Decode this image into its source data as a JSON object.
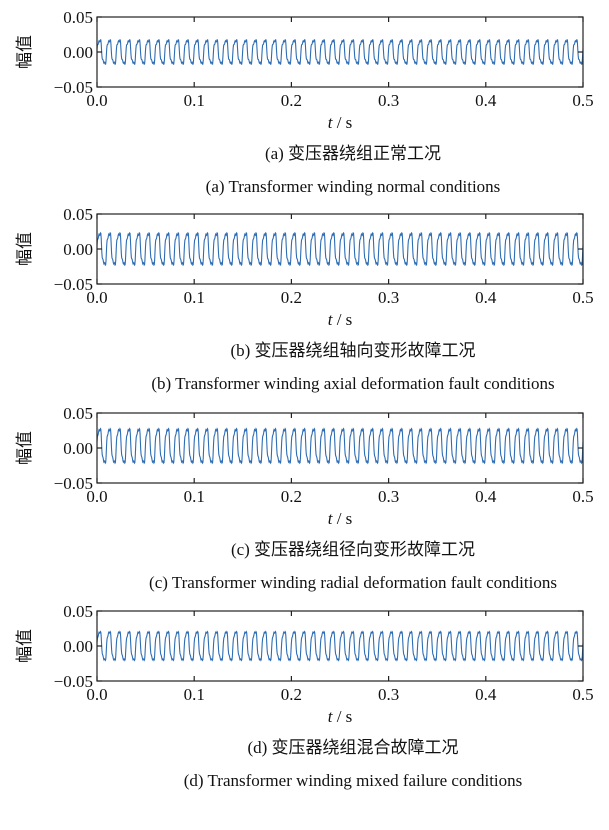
{
  "chart_data": [
    {
      "type": "line",
      "panel": "a",
      "ylabel": "幅值",
      "xlabel": {
        "var": "t",
        "unit": " / s"
      },
      "xlim": [
        0.0,
        0.5
      ],
      "ylim": [
        -0.05,
        0.05
      ],
      "xticks": [
        "0.0",
        "0.1",
        "0.2",
        "0.3",
        "0.4",
        "0.5"
      ],
      "yticks": [
        "0.05",
        "0.00",
        "−0.05"
      ],
      "color": "#2e6db4",
      "signal": {
        "frequency_hz": 100,
        "amplitude": 0.018,
        "offset": 0.0,
        "ripple_amplitude": 0.004
      },
      "caption_cn": "(a)  变压器绕组正常工况",
      "caption_en": "(a)  Transformer winding normal conditions"
    },
    {
      "type": "line",
      "panel": "b",
      "ylabel": "幅值",
      "xlabel": {
        "var": "t",
        "unit": " / s"
      },
      "xlim": [
        0.0,
        0.5
      ],
      "ylim": [
        -0.05,
        0.05
      ],
      "xticks": [
        "0.0",
        "0.1",
        "0.2",
        "0.3",
        "0.4",
        "0.5"
      ],
      "yticks": [
        "0.05",
        "0.00",
        "−0.05"
      ],
      "color": "#2e6db4",
      "signal": {
        "frequency_hz": 100,
        "amplitude": 0.024,
        "offset": 0.0,
        "ripple_amplitude": 0.005
      },
      "caption_cn": "(b)  变压器绕组轴向变形故障工况",
      "caption_en": "(b) Transformer winding axial deformation fault conditions"
    },
    {
      "type": "line",
      "panel": "c",
      "ylabel": "幅值",
      "xlabel": {
        "var": "t",
        "unit": " / s"
      },
      "xlim": [
        0.0,
        0.5
      ],
      "ylim": [
        -0.05,
        0.05
      ],
      "xticks": [
        "0.0",
        "0.1",
        "0.2",
        "0.3",
        "0.4",
        "0.5"
      ],
      "yticks": [
        "0.05",
        "0.00",
        "−0.05"
      ],
      "color": "#2e6db4",
      "signal": {
        "frequency_hz": 100,
        "amplitude": 0.026,
        "offset": 0.003,
        "ripple_amplitude": 0.005
      },
      "caption_cn": "(c)  变压器绕组径向变形故障工况",
      "caption_en": "(c)  Transformer winding radial deformation fault conditions"
    },
    {
      "type": "line",
      "panel": "d",
      "ylabel": "幅值",
      "xlabel": {
        "var": "t",
        "unit": " / s"
      },
      "xlim": [
        0.0,
        0.5
      ],
      "ylim": [
        -0.05,
        0.05
      ],
      "xticks": [
        "0.0",
        "0.1",
        "0.2",
        "0.3",
        "0.4",
        "0.5"
      ],
      "yticks": [
        "0.05",
        "0.00",
        "−0.05"
      ],
      "color": "#2e6db4",
      "signal": {
        "frequency_hz": 100,
        "amplitude": 0.022,
        "offset": 0.0,
        "ripple_amplitude": 0.004
      },
      "caption_cn": "(d)  变压器绕组混合故障工况",
      "caption_en": "(d)  Transformer winding mixed failure conditions"
    }
  ]
}
